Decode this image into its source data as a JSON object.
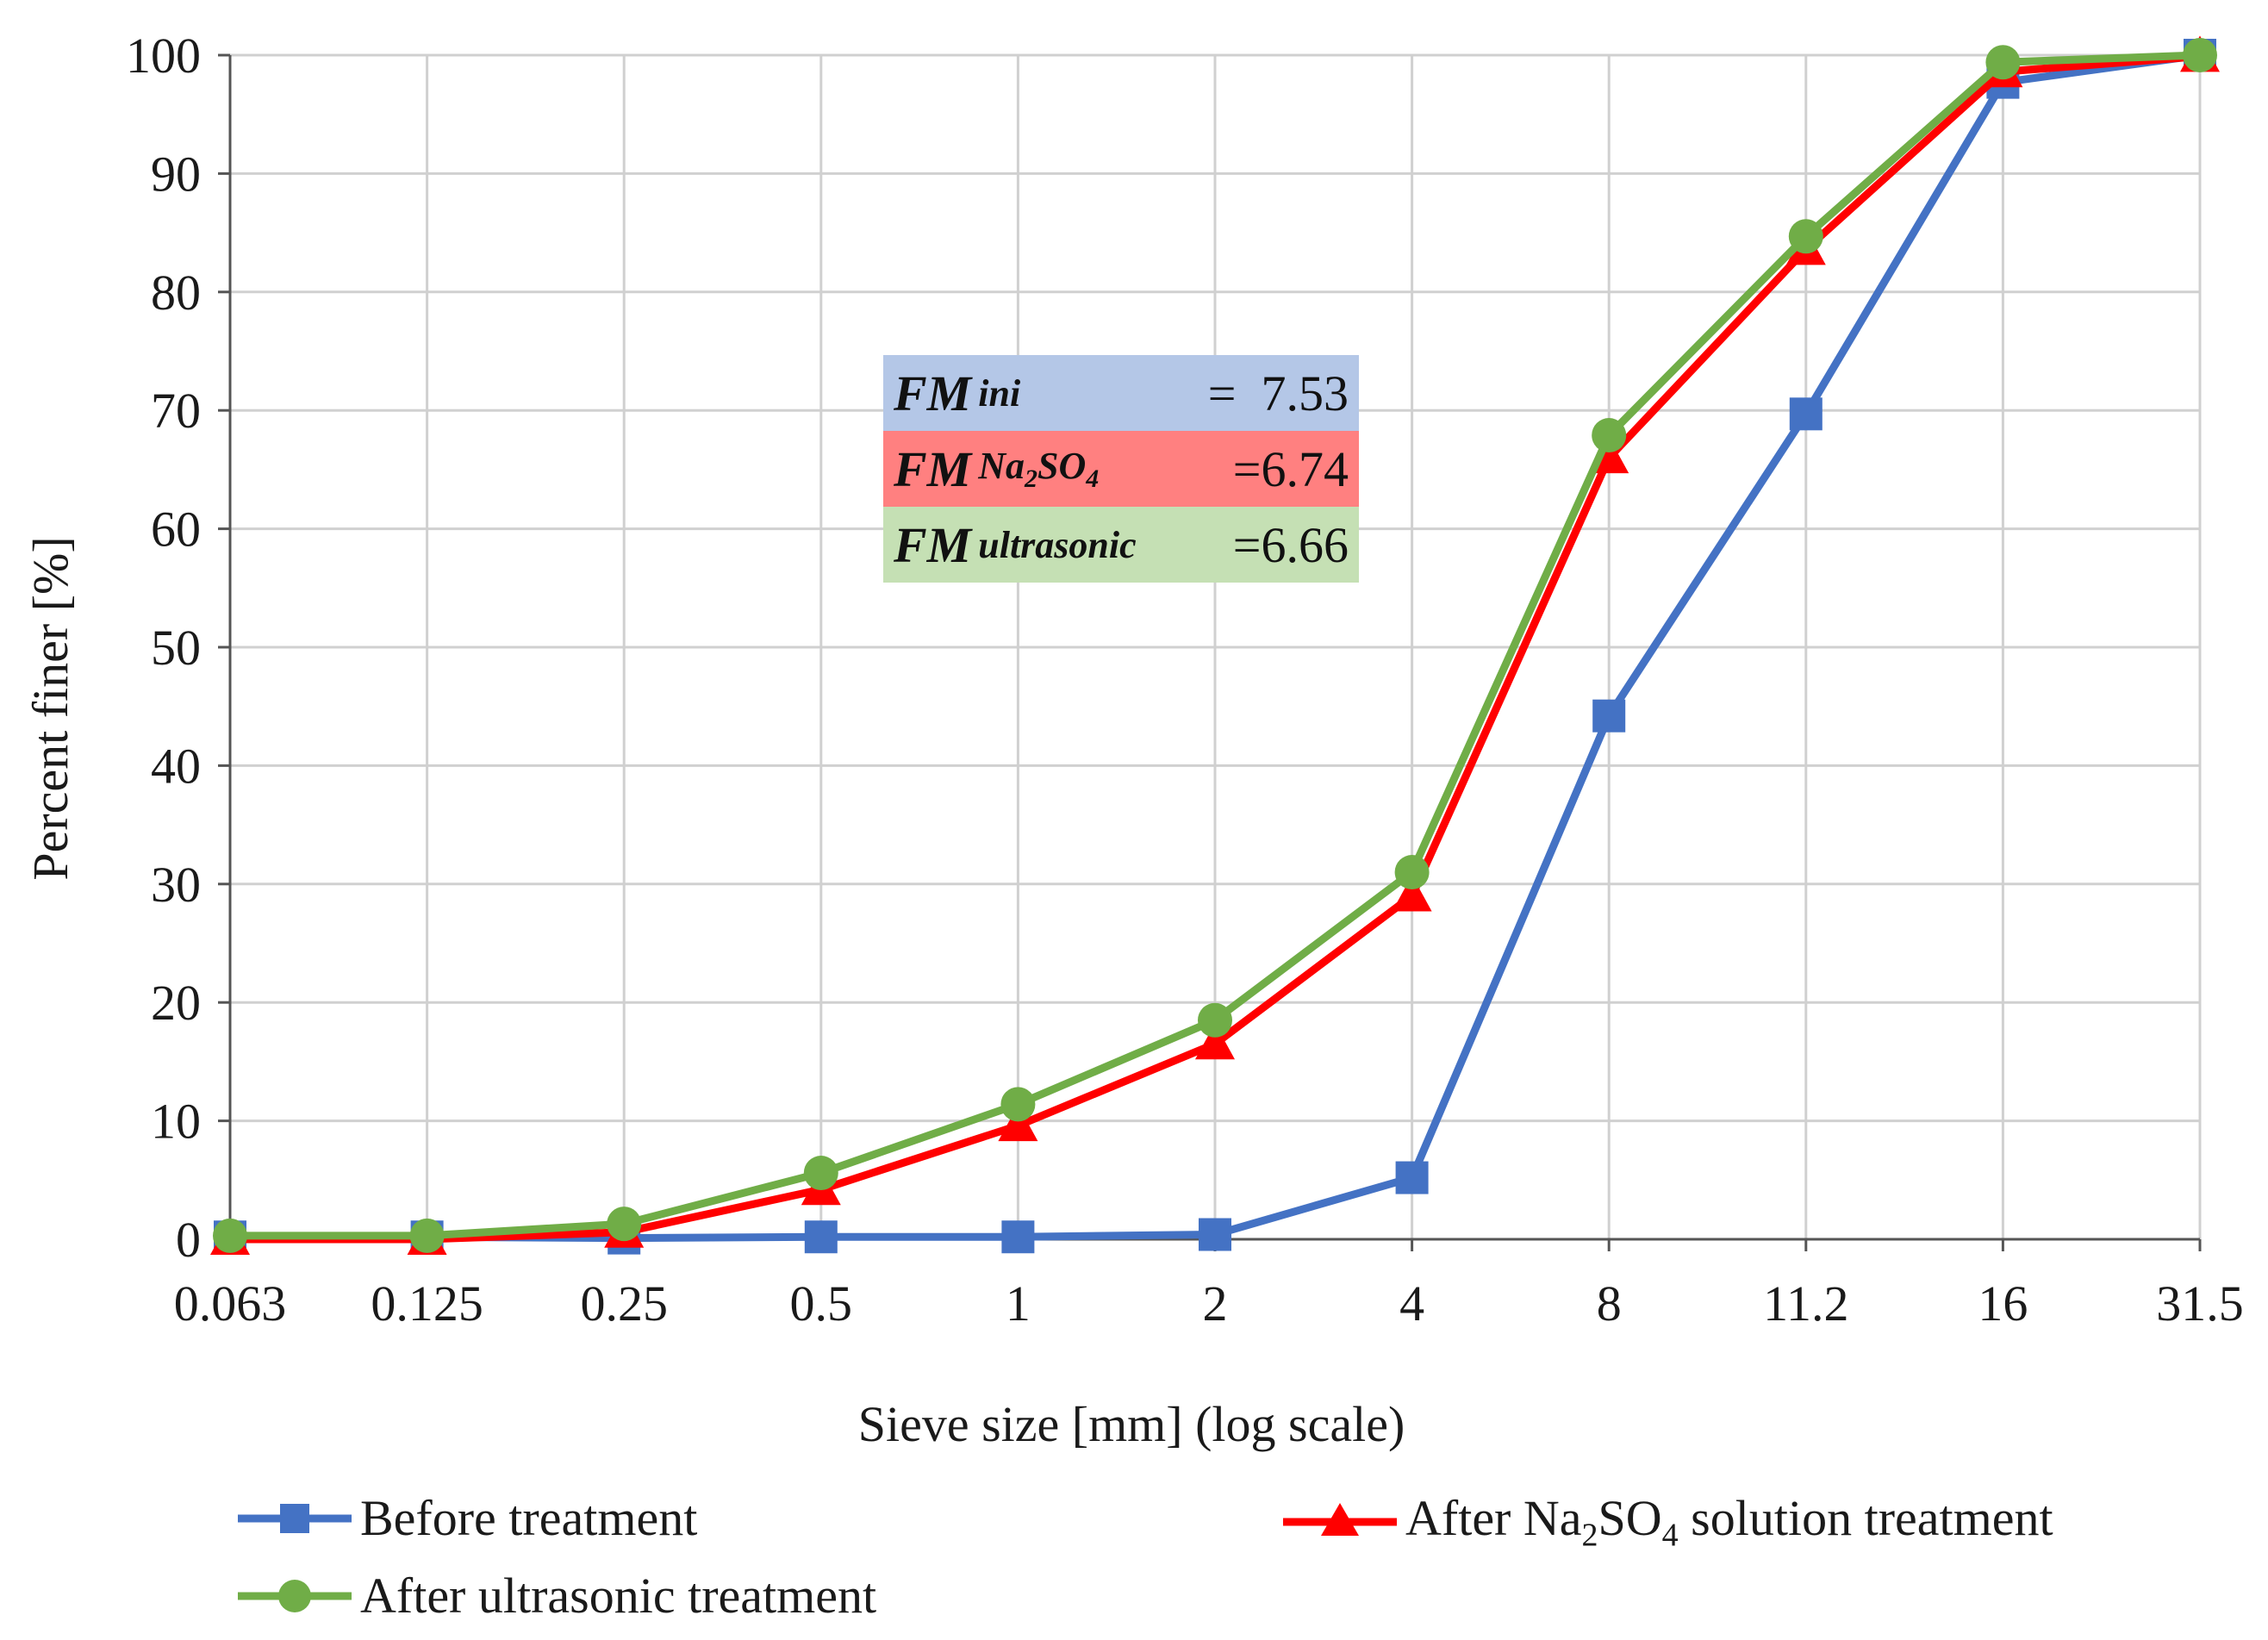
{
  "chart_data": {
    "type": "line",
    "title": "",
    "xlabel": "Sieve size [mm] (log scale)",
    "ylabel": "Percent finer [%]",
    "categories": [
      "0.063",
      "0.125",
      "0.25",
      "0.5",
      "1",
      "2",
      "4",
      "8",
      "11.2",
      "16",
      "31.5"
    ],
    "ylim": [
      0,
      100
    ],
    "yticks": [
      "0",
      "10",
      "20",
      "30",
      "40",
      "50",
      "60",
      "70",
      "80",
      "90",
      "100"
    ],
    "grid": true,
    "series": [
      {
        "name": "Before treatment",
        "color": "#4472C4",
        "marker": "square",
        "values": [
          0.2,
          0.2,
          0.1,
          0.2,
          0.2,
          0.4,
          5.2,
          44.2,
          69.7,
          97.7,
          100
        ]
      },
      {
        "name": "After Na₂SO₄ solution treatment",
        "color": "#FF0000",
        "marker": "triangle",
        "values": [
          0,
          0,
          0.6,
          4.2,
          9.6,
          16.5,
          29,
          66,
          83.6,
          98.6,
          99.9
        ]
      },
      {
        "name": "After ultrasonic treatment",
        "color": "#70AD47",
        "marker": "circle",
        "values": [
          0.3,
          0.3,
          1.3,
          5.6,
          11.4,
          18.5,
          31,
          67.9,
          84.7,
          99.4,
          100
        ]
      }
    ],
    "legend_position": "bottom",
    "annotations": {
      "fm_ini": {
        "label": "FM",
        "subscript": "ini",
        "equals": "=",
        "value": "7.53",
        "color": "#B4C7E7"
      },
      "fm_na2so4": {
        "label": "FM",
        "subscript_main": "Na",
        "subscript_2": "2",
        "subscript_so": "SO",
        "subscript_4": "4",
        "equals": "=",
        "value": "6.74",
        "color": "#FF8080"
      },
      "fm_ultrasonic": {
        "label": "FM",
        "subscript": "ultrasonic",
        "equals": "=",
        "value": "6.66",
        "color": "#C5E0B4"
      }
    }
  },
  "legend": {
    "before": "Before treatment",
    "na2so4_prefix": "After Na",
    "na2so4_sub2": "2",
    "na2so4_so": "SO",
    "na2so4_sub4": "4",
    "na2so4_suffix": " solution treatment",
    "ultrasonic": "After ultrasonic treatment"
  }
}
